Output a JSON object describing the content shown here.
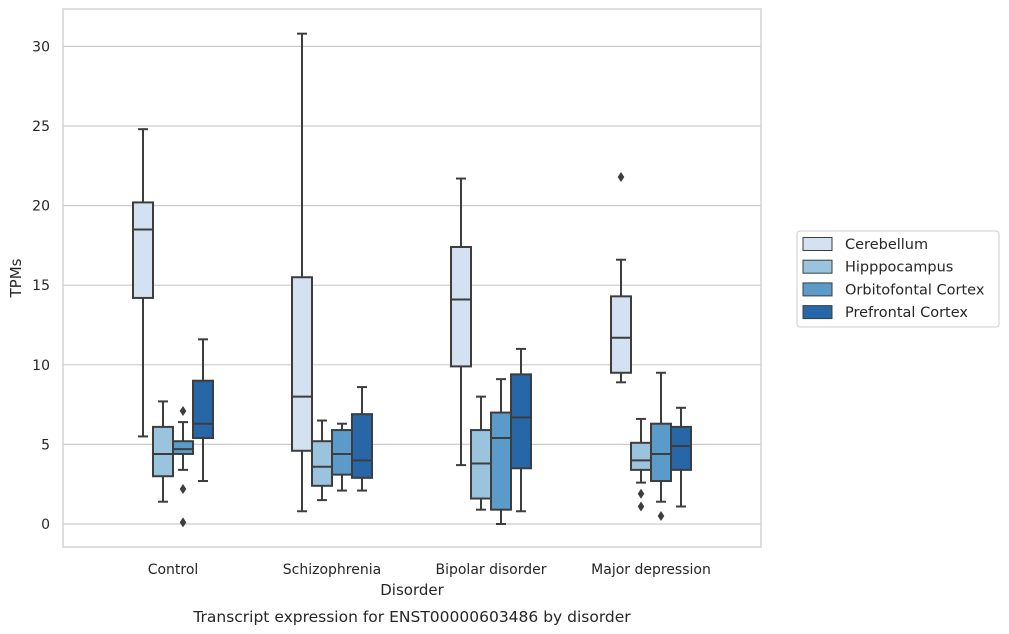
{
  "chart_data": {
    "type": "box",
    "xlabel": "Disorder",
    "ylabel": "TPMs",
    "caption": "Transcript expression for ENST00000603486 by disorder",
    "ylim": [
      -1.5,
      32.3
    ],
    "yticks": [
      0,
      5,
      10,
      15,
      20,
      25,
      30
    ],
    "grid": "horizontal",
    "legend_position": "right",
    "categories": [
      "Control",
      "Schizophrenia",
      "Bipolar disorder",
      "Major depression"
    ],
    "series": [
      {
        "name": "Cerebellum",
        "color": "#d4e1f0",
        "boxes": [
          {
            "whislo": 5.5,
            "q1": 14.2,
            "med": 18.5,
            "q3": 20.2,
            "whishi": 24.8,
            "fliers": []
          },
          {
            "whislo": 0.8,
            "q1": 4.6,
            "med": 8.0,
            "q3": 15.5,
            "whishi": 30.8,
            "fliers": []
          },
          {
            "whislo": 3.7,
            "q1": 9.9,
            "med": 14.1,
            "q3": 17.4,
            "whishi": 21.7,
            "fliers": []
          },
          {
            "whislo": 8.9,
            "q1": 9.5,
            "med": 11.7,
            "q3": 14.3,
            "whishi": 16.6,
            "fliers": [
              21.8
            ]
          }
        ]
      },
      {
        "name": "Hipppocampus",
        "color": "#9ac4de",
        "boxes": [
          {
            "whislo": 1.4,
            "q1": 3.0,
            "med": 4.4,
            "q3": 6.1,
            "whishi": 7.7,
            "fliers": []
          },
          {
            "whislo": 1.5,
            "q1": 2.4,
            "med": 3.6,
            "q3": 5.2,
            "whishi": 6.5,
            "fliers": []
          },
          {
            "whislo": 0.9,
            "q1": 1.6,
            "med": 3.8,
            "q3": 5.9,
            "whishi": 8.0,
            "fliers": []
          },
          {
            "whislo": 2.6,
            "q1": 3.4,
            "med": 4.0,
            "q3": 5.1,
            "whishi": 6.6,
            "fliers": [
              1.9,
              1.1
            ]
          }
        ]
      },
      {
        "name": "Orbitofontal Cortex",
        "color": "#5b9bc9",
        "boxes": [
          {
            "whislo": 3.4,
            "q1": 4.4,
            "med": 4.7,
            "q3": 5.2,
            "whishi": 6.4,
            "fliers": [
              7.1,
              2.2,
              0.1
            ]
          },
          {
            "whislo": 2.1,
            "q1": 3.1,
            "med": 4.4,
            "q3": 5.9,
            "whishi": 6.3,
            "fliers": []
          },
          {
            "whislo": 0.0,
            "q1": 0.9,
            "med": 5.4,
            "q3": 7.0,
            "whishi": 9.1,
            "fliers": []
          },
          {
            "whislo": 1.4,
            "q1": 2.7,
            "med": 4.4,
            "q3": 6.3,
            "whishi": 9.5,
            "fliers": [
              0.5
            ]
          }
        ]
      },
      {
        "name": "Prefrontal Cortex",
        "color": "#2767a8",
        "boxes": [
          {
            "whislo": 2.7,
            "q1": 5.4,
            "med": 6.3,
            "q3": 9.0,
            "whishi": 11.6,
            "fliers": []
          },
          {
            "whislo": 2.1,
            "q1": 2.9,
            "med": 4.0,
            "q3": 6.9,
            "whishi": 8.6,
            "fliers": []
          },
          {
            "whislo": 0.8,
            "q1": 3.5,
            "med": 6.7,
            "q3": 9.4,
            "whishi": 11.0,
            "fliers": []
          },
          {
            "whislo": 1.1,
            "q1": 3.4,
            "med": 4.9,
            "q3": 6.1,
            "whishi": 7.3,
            "fliers": []
          }
        ]
      }
    ]
  }
}
